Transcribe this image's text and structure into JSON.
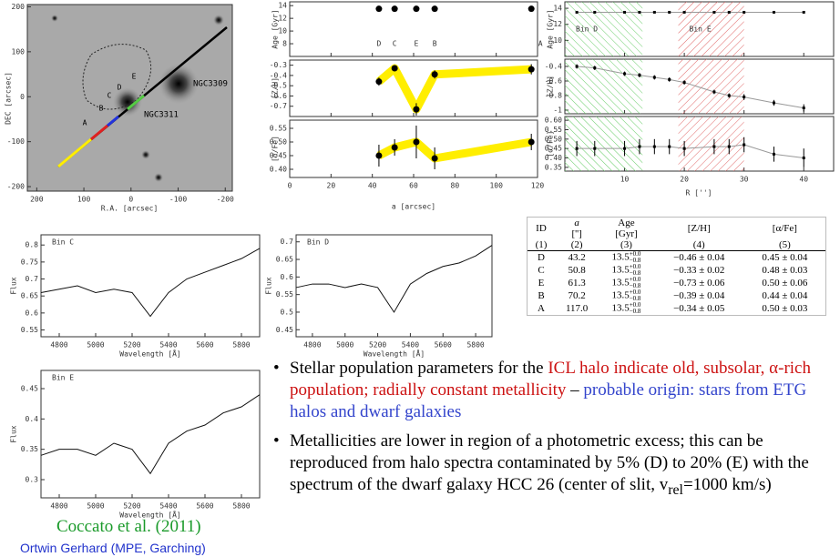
{
  "image": {
    "labels": [
      "NGC3309",
      "NGC3311",
      "A",
      "B",
      "C",
      "D",
      "E"
    ],
    "xlabel": "R.A. [arcsec]",
    "ylabel": "DEC [arcsec]",
    "xlim": [
      220,
      -215
    ],
    "ylim": [
      -210,
      205
    ],
    "xticks": [
      200,
      100,
      0,
      -100,
      -200
    ],
    "yticks": [
      200,
      100,
      0,
      -100,
      -200
    ]
  },
  "profiles": {
    "xlabel": "a [arcsec]",
    "xlim": [
      0,
      120
    ],
    "xticks": [
      0,
      20,
      40,
      60,
      80,
      100,
      120
    ],
    "a": [
      43.2,
      50.8,
      61.3,
      70.2,
      117.0
    ],
    "letters": [
      "D",
      "C",
      "E",
      "B",
      "A"
    ],
    "band_color": "#ffee00",
    "panels": [
      {
        "ylabel": "Age [Gyr]",
        "ylim": [
          6,
          14.6
        ],
        "yticks": [
          8,
          10,
          12,
          14
        ],
        "values": [
          13.5,
          13.5,
          13.5,
          13.5,
          13.5
        ]
      },
      {
        "ylabel": "[Z/H]",
        "ylim": [
          -0.8,
          -0.25
        ],
        "yticks": [
          -0.3,
          -0.4,
          -0.5,
          -0.6,
          -0.7
        ],
        "values": [
          -0.46,
          -0.33,
          -0.73,
          -0.39,
          -0.34
        ],
        "errors": [
          0.04,
          0.02,
          0.06,
          0.04,
          0.05
        ]
      },
      {
        "ylabel": "[α/Fe]",
        "ylim": [
          0.37,
          0.58
        ],
        "yticks": [
          {
            "value": 0.4,
            "label": "0.40"
          },
          0.45,
          {
            "value": 0.5,
            "label": "0.50"
          },
          0.55
        ],
        "values": [
          0.45,
          0.48,
          0.5,
          0.44,
          0.5
        ],
        "errors": [
          0.04,
          0.03,
          0.06,
          0.04,
          0.03
        ]
      }
    ]
  },
  "radial": {
    "xlabel": "R ['']",
    "xlim": [
      0,
      45
    ],
    "xticks": [
      10,
      20,
      30,
      40
    ],
    "r": [
      2,
      5,
      10,
      12.5,
      15,
      17.5,
      20,
      25,
      27.5,
      30,
      35,
      40
    ],
    "bins": [
      {
        "name": "Bin D",
        "range": [
          0,
          13
        ],
        "color": "#66cc66"
      },
      {
        "name": "Bin E",
        "range": [
          19,
          30
        ],
        "color": "#e06666"
      }
    ],
    "panels": [
      {
        "ylabel": "Age [Gyr]",
        "ylim": [
          8,
          14.8
        ],
        "yticks": [
          10,
          12,
          14
        ],
        "values": [
          13.5,
          13.5,
          13.5,
          13.5,
          13.5,
          13.5,
          13.5,
          13.5,
          13.5,
          13.5,
          13.5,
          13.5
        ]
      },
      {
        "ylabel": "[Z/H]",
        "ylim": [
          -1.05,
          -0.3
        ],
        "yticks": [
          -0.4,
          -0.6,
          -0.8,
          -1
        ],
        "values": [
          -0.4,
          -0.42,
          -0.5,
          -0.52,
          -0.55,
          -0.58,
          -0.62,
          -0.75,
          -0.8,
          -0.82,
          -0.9,
          -0.97
        ],
        "errors": [
          0.03,
          0.03,
          0.03,
          0.03,
          0.03,
          0.03,
          0.03,
          0.03,
          0.03,
          0.04,
          0.04,
          0.05
        ]
      },
      {
        "ylabel": "[α/Fe]",
        "ylim": [
          0.33,
          0.62
        ],
        "yticks": [
          0.35,
          {
            "value": 0.4,
            "label": "0.40"
          },
          0.45,
          {
            "value": 0.5,
            "label": "0.50"
          },
          0.55,
          {
            "value": 0.6,
            "label": "0.60"
          }
        ],
        "values": [
          0.45,
          0.45,
          0.45,
          0.46,
          0.46,
          0.46,
          0.45,
          0.46,
          0.46,
          0.47,
          0.42,
          0.4
        ],
        "errors": [
          0.04,
          0.04,
          0.04,
          0.04,
          0.04,
          0.04,
          0.04,
          0.04,
          0.04,
          0.04,
          0.04,
          0.05
        ]
      }
    ]
  },
  "spectra": {
    "xlabel": "Wavelength [Å]",
    "ylabel": "Flux",
    "xlim": [
      4700,
      5900
    ],
    "xticks": [
      4800,
      5000,
      5200,
      5400,
      5600,
      5800
    ],
    "x": [
      4700,
      4800,
      4900,
      5000,
      5100,
      5200,
      5300,
      5400,
      5500,
      5600,
      5700,
      5800,
      5900
    ],
    "panels": [
      {
        "name": "Bin C",
        "ylim": [
          0.53,
          0.83
        ],
        "yticks": [
          0.55,
          0.6,
          0.65,
          0.7,
          0.75,
          0.8
        ],
        "values": [
          0.66,
          0.67,
          0.68,
          0.66,
          0.67,
          0.66,
          0.59,
          0.66,
          0.7,
          0.72,
          0.74,
          0.76,
          0.79
        ]
      },
      {
        "name": "Bin D",
        "ylim": [
          0.43,
          0.72
        ],
        "yticks": [
          0.45,
          0.5,
          0.55,
          0.6,
          0.65,
          0.7
        ],
        "values": [
          0.57,
          0.58,
          0.58,
          0.57,
          0.58,
          0.57,
          0.5,
          0.58,
          0.61,
          0.63,
          0.64,
          0.66,
          0.69
        ]
      },
      {
        "name": "Bin E",
        "ylim": [
          0.27,
          0.48
        ],
        "yticks": [
          0.3,
          0.35,
          0.4,
          0.45
        ],
        "values": [
          0.34,
          0.35,
          0.35,
          0.34,
          0.36,
          0.35,
          0.31,
          0.36,
          0.38,
          0.39,
          0.41,
          0.42,
          0.44
        ]
      }
    ]
  },
  "table": {
    "header": [
      "ID",
      "a",
      "Age",
      "[Z/H]",
      "[α/Fe]"
    ],
    "units": [
      "['']",
      "[Gyr]"
    ],
    "numbers": [
      "(1)",
      "(2)",
      "(3)",
      "(4)",
      "(5)"
    ],
    "rows": [
      {
        "id": "D",
        "a": "43.2",
        "age": "13.5",
        "age_up": "+0.0",
        "age_down": "−0.8",
        "zh": "−0.46 ± 0.04",
        "afe": "0.45 ± 0.04"
      },
      {
        "id": "C",
        "a": "50.8",
        "age": "13.5",
        "age_up": "+0.0",
        "age_down": "−0.8",
        "zh": "−0.33 ± 0.02",
        "afe": "0.48 ± 0.03"
      },
      {
        "id": "E",
        "a": "61.3",
        "age": "13.5",
        "age_up": "+0.0",
        "age_down": "−0.8",
        "zh": "−0.73 ± 0.06",
        "afe": "0.50 ± 0.06"
      },
      {
        "id": "B",
        "a": "70.2",
        "age": "13.5",
        "age_up": "+0.0",
        "age_down": "−0.8",
        "zh": "−0.39 ± 0.04",
        "afe": "0.44 ± 0.04"
      },
      {
        "id": "A",
        "a": "117.0",
        "age": "13.5",
        "age_up": "+0.0",
        "age_down": "−0.8",
        "zh": "−0.34 ± 0.05",
        "afe": "0.50 ± 0.03"
      }
    ]
  },
  "bullets": [
    [
      {
        "text": "Stellar population parameters for the "
      },
      {
        "text": "ICL halo indicate old, subsolar, α-rich population; radially constant metallicity",
        "color": "#cc1111"
      },
      {
        "text": " – "
      },
      {
        "text": "probable origin: stars from ETG halos and dwarf galaxies",
        "color": "#3344cc"
      }
    ],
    [
      {
        "text": "Metallicities are lower in region of a photometric excess; this can be reproduced from halo spectra contaminated by 5% (D) to 20% (E) with the spectrum of the dwarf galaxy HCC 26 (center of slit, v"
      },
      {
        "text": "rel",
        "sub": true
      },
      {
        "text": "=1000 km/s)"
      }
    ]
  ],
  "citation": "Coccato et al. (2011)",
  "author": "Ortwin Gerhard (MPE, Garching)"
}
